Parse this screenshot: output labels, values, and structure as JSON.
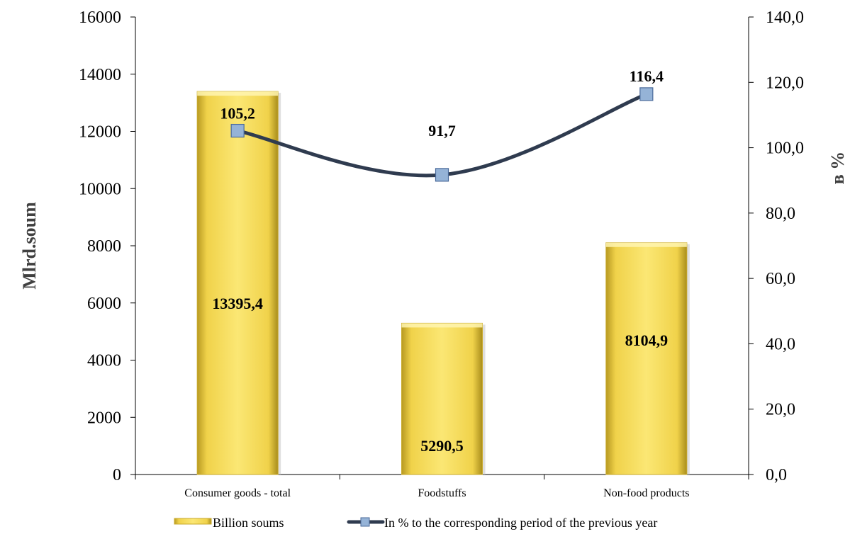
{
  "chart_data": {
    "type": "bar",
    "categories": [
      "Consumer goods - total",
      "Foodstuffs",
      "Non-food products"
    ],
    "series": [
      {
        "name": "Billion soums",
        "kind": "bar",
        "axis": "left",
        "values": [
          13395.4,
          5290.5,
          8104.9
        ],
        "value_labels": [
          "13395,4",
          "5290,5",
          "8104,9"
        ],
        "color": "#f5d94f"
      },
      {
        "name": "In % to the corresponding  period of the previous year",
        "kind": "line",
        "axis": "right",
        "values": [
          105.2,
          91.7,
          116.4
        ],
        "value_labels": [
          "105,2",
          "91,7",
          "116,4"
        ],
        "color": "#2f3b4f",
        "marker_color": "#95b3d7"
      }
    ],
    "ylabel": "Mlrd.soum",
    "y2label": "в %",
    "ylim": [
      0,
      16000
    ],
    "y2lim": [
      0,
      140
    ],
    "yticks": [
      "0",
      "2000",
      "4000",
      "6000",
      "8000",
      "10000",
      "12000",
      "14000",
      "16000"
    ],
    "y2ticks": [
      "0,0",
      "20,0",
      "40,0",
      "60,0",
      "80,0",
      "100,0",
      "120,0",
      "140,0"
    ],
    "grid": false,
    "legend_position": "bottom"
  }
}
